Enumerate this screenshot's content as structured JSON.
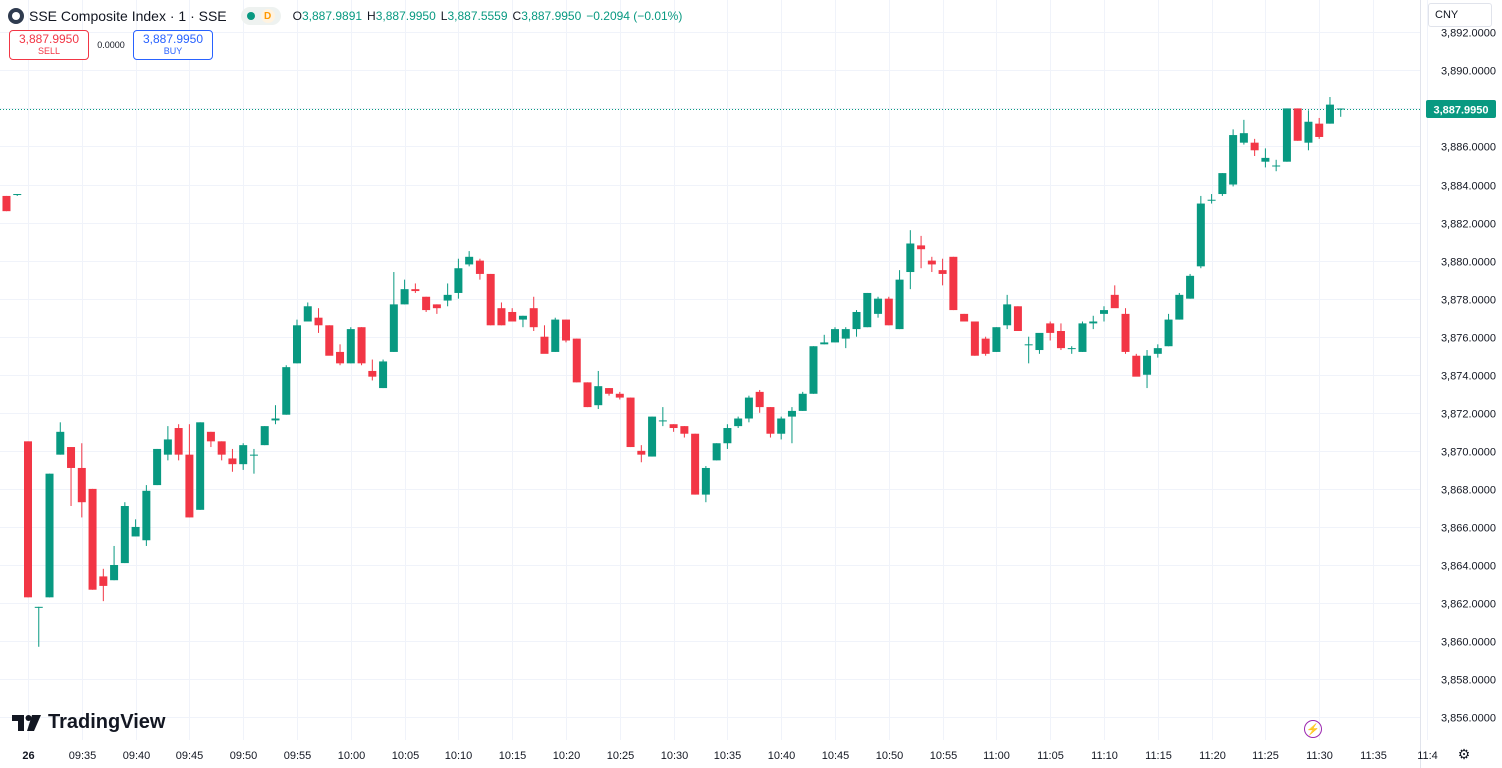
{
  "header": {
    "title": "SSE Composite Index · 1 · SSE",
    "market_status_label": "D",
    "ohlc": {
      "o_key": "O",
      "o_val": "3,887.9891",
      "h_key": "H",
      "h_val": "3,887.9950",
      "l_key": "L",
      "l_val": "3,887.5559",
      "c_key": "C",
      "c_val": "3,887.9950",
      "change": "−0.2094 (−0.01%)"
    }
  },
  "trade": {
    "sell_price": "3,887.9950",
    "sell_label": "SELL",
    "spread": "0.0000",
    "buy_price": "3,887.9950",
    "buy_label": "BUY"
  },
  "currency": "CNY",
  "last_price_label": "3,887.9950",
  "brand": "TradingView",
  "colors": {
    "up": "#089981",
    "down": "#f23645",
    "accent": "#2962ff",
    "grid": "#f0f3fa",
    "alert": "#9c27b0"
  },
  "icons": {
    "logo": "sse-logo-icon",
    "tv": "tradingview-logo-icon",
    "alert": "lightning-icon",
    "settings": "gear-icon"
  },
  "chart_data": {
    "type": "candlestick",
    "title": "SSE Composite Index · 1 · SSE",
    "y_ticks": [
      3856,
      3858,
      3860,
      3862,
      3864,
      3866,
      3868,
      3870,
      3872,
      3874,
      3876,
      3878,
      3880,
      3882,
      3884,
      3886,
      3888,
      3890,
      3892
    ],
    "y_tick_labels": [
      "3,856.0000",
      "3,858.0000",
      "3,860.0000",
      "3,862.0000",
      "3,864.0000",
      "3,866.0000",
      "3,868.0000",
      "3,870.0000",
      "3,872.0000",
      "3,874.0000",
      "3,876.0000",
      "3,878.0000",
      "3,880.0000",
      "3,882.0000",
      "3,884.0000",
      "3,886.0000",
      "3,888.0000",
      "3,890.0000",
      "3,892.0000"
    ],
    "x_tick_labels": [
      "26",
      "09:35",
      "09:40",
      "09:45",
      "09:50",
      "09:55",
      "10:00",
      "10:05",
      "10:10",
      "10:15",
      "10:20",
      "10:25",
      "10:30",
      "10:35",
      "10:40",
      "10:45",
      "10:50",
      "10:55",
      "11:00",
      "11:05",
      "11:10",
      "11:15",
      "11:20",
      "11:25",
      "11:30",
      "11:35",
      "11:4"
    ],
    "x_tick_minutes": [
      30,
      35,
      40,
      45,
      50,
      55,
      60,
      65,
      70,
      75,
      80,
      85,
      90,
      95,
      100,
      105,
      110,
      115,
      120,
      125,
      130,
      135,
      140,
      145,
      150,
      155,
      160
    ],
    "ylim": [
      3854.8,
      3893.7
    ],
    "last_price": 3887.995,
    "candles": [
      {
        "t": 28,
        "o": 3883.4,
        "h": 3883.4,
        "l": 3882.6,
        "c": 3882.6
      },
      {
        "t": 29,
        "o": 3883.5,
        "h": 3883.5,
        "l": 3883.4,
        "c": 3883.5
      },
      {
        "t": 30,
        "o": 3870.5,
        "h": 3870.5,
        "l": 3862.3,
        "c": 3862.3
      },
      {
        "t": 31,
        "o": 3861.8,
        "h": 3861.8,
        "l": 3859.7,
        "c": 3861.8
      },
      {
        "t": 32,
        "o": 3862.3,
        "h": 3868.8,
        "l": 3862.3,
        "c": 3868.8
      },
      {
        "t": 33,
        "o": 3869.8,
        "h": 3871.5,
        "l": 3869.8,
        "c": 3871.0
      },
      {
        "t": 34,
        "o": 3870.2,
        "h": 3870.2,
        "l": 3867.1,
        "c": 3869.1
      },
      {
        "t": 35,
        "o": 3869.1,
        "h": 3870.4,
        "l": 3866.5,
        "c": 3867.3
      },
      {
        "t": 36,
        "o": 3868.0,
        "h": 3868.0,
        "l": 3862.7,
        "c": 3862.7
      },
      {
        "t": 37,
        "o": 3863.4,
        "h": 3863.8,
        "l": 3862.1,
        "c": 3862.9
      },
      {
        "t": 38,
        "o": 3863.2,
        "h": 3865.0,
        "l": 3863.2,
        "c": 3864.0
      },
      {
        "t": 39,
        "o": 3864.1,
        "h": 3867.3,
        "l": 3864.1,
        "c": 3867.1
      },
      {
        "t": 40,
        "o": 3865.5,
        "h": 3866.4,
        "l": 3865.5,
        "c": 3866.0
      },
      {
        "t": 41,
        "o": 3865.3,
        "h": 3868.2,
        "l": 3865.0,
        "c": 3867.9
      },
      {
        "t": 42,
        "o": 3868.2,
        "h": 3870.1,
        "l": 3868.2,
        "c": 3870.1
      },
      {
        "t": 43,
        "o": 3869.8,
        "h": 3871.3,
        "l": 3869.5,
        "c": 3870.6
      },
      {
        "t": 44,
        "o": 3871.2,
        "h": 3871.4,
        "l": 3869.5,
        "c": 3869.8
      },
      {
        "t": 45,
        "o": 3869.8,
        "h": 3871.4,
        "l": 3866.5,
        "c": 3866.5
      },
      {
        "t": 46,
        "o": 3866.9,
        "h": 3871.5,
        "l": 3866.9,
        "c": 3871.5
      },
      {
        "t": 47,
        "o": 3871.0,
        "h": 3871.0,
        "l": 3870.2,
        "c": 3870.5
      },
      {
        "t": 48,
        "o": 3870.5,
        "h": 3870.5,
        "l": 3869.5,
        "c": 3869.8
      },
      {
        "t": 49,
        "o": 3869.6,
        "h": 3870.1,
        "l": 3868.9,
        "c": 3869.3
      },
      {
        "t": 50,
        "o": 3869.3,
        "h": 3870.4,
        "l": 3869.0,
        "c": 3870.3
      },
      {
        "t": 51,
        "o": 3869.8,
        "h": 3870.1,
        "l": 3868.8,
        "c": 3869.8
      },
      {
        "t": 52,
        "o": 3870.3,
        "h": 3871.3,
        "l": 3870.3,
        "c": 3871.3
      },
      {
        "t": 53,
        "o": 3871.6,
        "h": 3872.4,
        "l": 3871.4,
        "c": 3871.7
      },
      {
        "t": 54,
        "o": 3871.9,
        "h": 3874.5,
        "l": 3871.9,
        "c": 3874.4
      },
      {
        "t": 55,
        "o": 3874.6,
        "h": 3876.9,
        "l": 3874.6,
        "c": 3876.6
      },
      {
        "t": 56,
        "o": 3876.8,
        "h": 3877.8,
        "l": 3876.8,
        "c": 3877.6
      },
      {
        "t": 57,
        "o": 3877.0,
        "h": 3877.5,
        "l": 3876.2,
        "c": 3876.6
      },
      {
        "t": 58,
        "o": 3876.6,
        "h": 3876.6,
        "l": 3875.2,
        "c": 3875.0
      },
      {
        "t": 59,
        "o": 3875.2,
        "h": 3875.6,
        "l": 3874.5,
        "c": 3874.6
      },
      {
        "t": 60,
        "o": 3874.6,
        "h": 3876.5,
        "l": 3874.6,
        "c": 3876.4
      },
      {
        "t": 61,
        "o": 3876.5,
        "h": 3876.5,
        "l": 3874.5,
        "c": 3874.6
      },
      {
        "t": 62,
        "o": 3874.2,
        "h": 3874.8,
        "l": 3873.7,
        "c": 3873.9
      },
      {
        "t": 63,
        "o": 3873.3,
        "h": 3874.8,
        "l": 3873.3,
        "c": 3874.7
      },
      {
        "t": 64,
        "o": 3875.2,
        "h": 3879.4,
        "l": 3875.2,
        "c": 3877.7
      },
      {
        "t": 65,
        "o": 3877.7,
        "h": 3879.0,
        "l": 3877.7,
        "c": 3878.5
      },
      {
        "t": 66,
        "o": 3878.5,
        "h": 3878.8,
        "l": 3878.3,
        "c": 3878.4
      },
      {
        "t": 67,
        "o": 3878.1,
        "h": 3878.1,
        "l": 3877.3,
        "c": 3877.4
      },
      {
        "t": 68,
        "o": 3877.7,
        "h": 3877.7,
        "l": 3877.2,
        "c": 3877.5
      },
      {
        "t": 69,
        "o": 3877.9,
        "h": 3878.8,
        "l": 3877.6,
        "c": 3878.2
      },
      {
        "t": 70,
        "o": 3878.3,
        "h": 3880.1,
        "l": 3878.0,
        "c": 3879.6
      },
      {
        "t": 71,
        "o": 3879.8,
        "h": 3880.5,
        "l": 3879.7,
        "c": 3880.2
      },
      {
        "t": 72,
        "o": 3880.0,
        "h": 3880.1,
        "l": 3879.0,
        "c": 3879.3
      },
      {
        "t": 73,
        "o": 3879.3,
        "h": 3879.3,
        "l": 3876.6,
        "c": 3876.6
      },
      {
        "t": 74,
        "o": 3877.5,
        "h": 3877.8,
        "l": 3876.6,
        "c": 3876.6
      },
      {
        "t": 75,
        "o": 3877.3,
        "h": 3877.5,
        "l": 3876.8,
        "c": 3876.8
      },
      {
        "t": 76,
        "o": 3876.9,
        "h": 3877.1,
        "l": 3876.5,
        "c": 3877.1
      },
      {
        "t": 77,
        "o": 3877.5,
        "h": 3878.1,
        "l": 3876.3,
        "c": 3876.5
      },
      {
        "t": 78,
        "o": 3876.0,
        "h": 3876.6,
        "l": 3875.4,
        "c": 3875.1
      },
      {
        "t": 79,
        "o": 3875.2,
        "h": 3877.0,
        "l": 3875.2,
        "c": 3876.9
      },
      {
        "t": 80,
        "o": 3876.9,
        "h": 3876.9,
        "l": 3875.7,
        "c": 3875.8
      },
      {
        "t": 81,
        "o": 3875.9,
        "h": 3875.9,
        "l": 3873.6,
        "c": 3873.6
      },
      {
        "t": 82,
        "o": 3873.6,
        "h": 3873.6,
        "l": 3872.3,
        "c": 3872.3
      },
      {
        "t": 83,
        "o": 3872.4,
        "h": 3874.2,
        "l": 3872.2,
        "c": 3873.4
      },
      {
        "t": 84,
        "o": 3873.3,
        "h": 3873.3,
        "l": 3872.9,
        "c": 3873.0
      },
      {
        "t": 85,
        "o": 3873.0,
        "h": 3873.1,
        "l": 3872.7,
        "c": 3872.8
      },
      {
        "t": 86,
        "o": 3872.8,
        "h": 3872.8,
        "l": 3870.2,
        "c": 3870.2
      },
      {
        "t": 87,
        "o": 3870.0,
        "h": 3870.3,
        "l": 3869.4,
        "c": 3869.8
      },
      {
        "t": 88,
        "o": 3869.7,
        "h": 3871.8,
        "l": 3869.7,
        "c": 3871.8
      },
      {
        "t": 89,
        "o": 3871.6,
        "h": 3872.3,
        "l": 3871.3,
        "c": 3871.6
      },
      {
        "t": 90,
        "o": 3871.4,
        "h": 3871.4,
        "l": 3871.0,
        "c": 3871.2
      },
      {
        "t": 91,
        "o": 3871.3,
        "h": 3871.3,
        "l": 3870.7,
        "c": 3870.9
      },
      {
        "t": 92,
        "o": 3870.9,
        "h": 3870.9,
        "l": 3867.7,
        "c": 3867.7
      },
      {
        "t": 93,
        "o": 3867.7,
        "h": 3869.2,
        "l": 3867.3,
        "c": 3869.1
      },
      {
        "t": 94,
        "o": 3869.5,
        "h": 3870.4,
        "l": 3869.5,
        "c": 3870.4
      },
      {
        "t": 95,
        "o": 3870.4,
        "h": 3871.4,
        "l": 3870.1,
        "c": 3871.2
      },
      {
        "t": 96,
        "o": 3871.3,
        "h": 3871.8,
        "l": 3871.2,
        "c": 3871.7
      },
      {
        "t": 97,
        "o": 3871.7,
        "h": 3872.9,
        "l": 3871.5,
        "c": 3872.8
      },
      {
        "t": 98,
        "o": 3873.1,
        "h": 3873.2,
        "l": 3872.0,
        "c": 3872.3
      },
      {
        "t": 99,
        "o": 3872.3,
        "h": 3872.3,
        "l": 3870.7,
        "c": 3870.9
      },
      {
        "t": 100,
        "o": 3870.9,
        "h": 3871.8,
        "l": 3870.6,
        "c": 3871.7
      },
      {
        "t": 101,
        "o": 3871.8,
        "h": 3872.3,
        "l": 3870.4,
        "c": 3872.1
      },
      {
        "t": 102,
        "o": 3872.1,
        "h": 3873.1,
        "l": 3872.1,
        "c": 3873.0
      },
      {
        "t": 103,
        "o": 3873.0,
        "h": 3875.5,
        "l": 3873.0,
        "c": 3875.5
      },
      {
        "t": 104,
        "o": 3875.6,
        "h": 3876.1,
        "l": 3875.6,
        "c": 3875.7
      },
      {
        "t": 105,
        "o": 3875.7,
        "h": 3876.5,
        "l": 3875.7,
        "c": 3876.4
      },
      {
        "t": 106,
        "o": 3875.9,
        "h": 3876.5,
        "l": 3875.4,
        "c": 3876.4
      },
      {
        "t": 107,
        "o": 3876.4,
        "h": 3877.4,
        "l": 3876.0,
        "c": 3877.3
      },
      {
        "t": 108,
        "o": 3876.5,
        "h": 3878.3,
        "l": 3876.5,
        "c": 3878.3
      },
      {
        "t": 109,
        "o": 3877.2,
        "h": 3878.1,
        "l": 3877.0,
        "c": 3878.0
      },
      {
        "t": 110,
        "o": 3878.0,
        "h": 3878.1,
        "l": 3876.6,
        "c": 3876.6
      },
      {
        "t": 111,
        "o": 3876.4,
        "h": 3879.5,
        "l": 3876.4,
        "c": 3879.0
      },
      {
        "t": 112,
        "o": 3879.4,
        "h": 3881.6,
        "l": 3878.5,
        "c": 3880.9
      },
      {
        "t": 113,
        "o": 3880.8,
        "h": 3881.3,
        "l": 3879.6,
        "c": 3880.6
      },
      {
        "t": 114,
        "o": 3880.0,
        "h": 3880.2,
        "l": 3879.4,
        "c": 3879.8
      },
      {
        "t": 115,
        "o": 3879.5,
        "h": 3880.1,
        "l": 3878.7,
        "c": 3879.3
      },
      {
        "t": 116,
        "o": 3880.2,
        "h": 3880.2,
        "l": 3877.4,
        "c": 3877.4
      },
      {
        "t": 117,
        "o": 3877.2,
        "h": 3877.2,
        "l": 3876.8,
        "c": 3876.8
      },
      {
        "t": 118,
        "o": 3876.8,
        "h": 3876.8,
        "l": 3875.0,
        "c": 3875.0
      },
      {
        "t": 119,
        "o": 3875.9,
        "h": 3876.0,
        "l": 3875.0,
        "c": 3875.1
      },
      {
        "t": 120,
        "o": 3875.2,
        "h": 3876.5,
        "l": 3875.2,
        "c": 3876.5
      },
      {
        "t": 121,
        "o": 3876.6,
        "h": 3878.2,
        "l": 3876.4,
        "c": 3877.7
      },
      {
        "t": 122,
        "o": 3877.6,
        "h": 3877.6,
        "l": 3876.3,
        "c": 3876.3
      },
      {
        "t": 123,
        "o": 3875.6,
        "h": 3876.0,
        "l": 3874.6,
        "c": 3875.6
      },
      {
        "t": 124,
        "o": 3875.3,
        "h": 3876.1,
        "l": 3875.1,
        "c": 3876.2
      },
      {
        "t": 125,
        "o": 3876.7,
        "h": 3876.8,
        "l": 3875.8,
        "c": 3876.2
      },
      {
        "t": 126,
        "o": 3876.3,
        "h": 3876.7,
        "l": 3875.3,
        "c": 3875.4
      },
      {
        "t": 127,
        "o": 3875.4,
        "h": 3875.5,
        "l": 3875.1,
        "c": 3875.4
      },
      {
        "t": 128,
        "o": 3875.2,
        "h": 3876.8,
        "l": 3875.2,
        "c": 3876.7
      },
      {
        "t": 129,
        "o": 3876.7,
        "h": 3877.1,
        "l": 3876.4,
        "c": 3876.8
      },
      {
        "t": 130,
        "o": 3877.2,
        "h": 3877.6,
        "l": 3876.8,
        "c": 3877.4
      },
      {
        "t": 131,
        "o": 3878.2,
        "h": 3878.7,
        "l": 3877.7,
        "c": 3877.5
      },
      {
        "t": 132,
        "o": 3877.2,
        "h": 3877.5,
        "l": 3875.1,
        "c": 3875.2
      },
      {
        "t": 133,
        "o": 3875.0,
        "h": 3875.1,
        "l": 3874.0,
        "c": 3873.9
      },
      {
        "t": 134,
        "o": 3874.0,
        "h": 3875.3,
        "l": 3873.3,
        "c": 3875.0
      },
      {
        "t": 135,
        "o": 3875.1,
        "h": 3875.6,
        "l": 3874.9,
        "c": 3875.4
      },
      {
        "t": 136,
        "o": 3875.5,
        "h": 3877.2,
        "l": 3875.5,
        "c": 3876.9
      },
      {
        "t": 137,
        "o": 3876.9,
        "h": 3878.3,
        "l": 3876.9,
        "c": 3878.2
      },
      {
        "t": 138,
        "o": 3878.0,
        "h": 3879.3,
        "l": 3878.0,
        "c": 3879.2
      },
      {
        "t": 139,
        "o": 3879.7,
        "h": 3883.4,
        "l": 3879.6,
        "c": 3883.0
      },
      {
        "t": 140,
        "o": 3883.2,
        "h": 3883.5,
        "l": 3883.0,
        "c": 3883.2
      },
      {
        "t": 141,
        "o": 3883.5,
        "h": 3884.6,
        "l": 3883.4,
        "c": 3884.6
      },
      {
        "t": 142,
        "o": 3884.0,
        "h": 3886.9,
        "l": 3883.9,
        "c": 3886.6
      },
      {
        "t": 143,
        "o": 3886.2,
        "h": 3887.4,
        "l": 3886.1,
        "c": 3886.7
      },
      {
        "t": 144,
        "o": 3886.2,
        "h": 3886.4,
        "l": 3885.5,
        "c": 3885.8
      },
      {
        "t": 145,
        "o": 3885.2,
        "h": 3885.9,
        "l": 3884.9,
        "c": 3885.4
      },
      {
        "t": 146,
        "o": 3885.0,
        "h": 3885.3,
        "l": 3884.7,
        "c": 3885.0
      },
      {
        "t": 147,
        "o": 3885.2,
        "h": 3888.0,
        "l": 3885.2,
        "c": 3888.0
      },
      {
        "t": 148,
        "o": 3888.0,
        "h": 3888.0,
        "l": 3886.3,
        "c": 3886.3
      },
      {
        "t": 149,
        "o": 3886.2,
        "h": 3887.9,
        "l": 3885.8,
        "c": 3887.3
      },
      {
        "t": 150,
        "o": 3887.2,
        "h": 3887.5,
        "l": 3886.4,
        "c": 3886.5
      },
      {
        "t": 151,
        "o": 3887.2,
        "h": 3888.6,
        "l": 3887.2,
        "c": 3888.2
      },
      {
        "t": 152,
        "o": 3887.99,
        "h": 3888.0,
        "l": 3887.56,
        "c": 3887.995
      }
    ]
  }
}
